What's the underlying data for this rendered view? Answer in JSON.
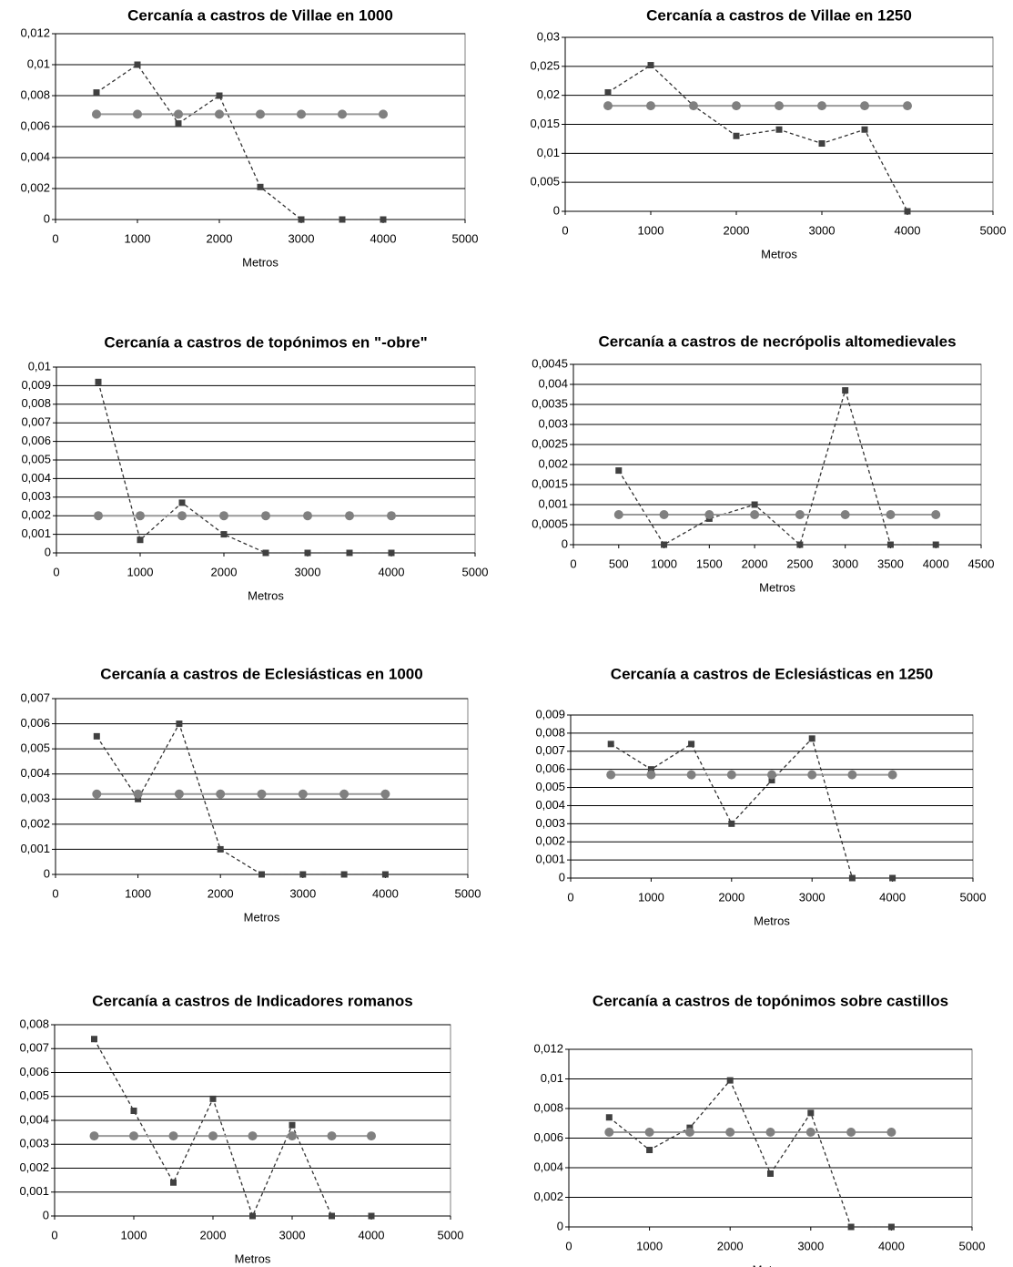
{
  "chart_data": [
    {
      "type": "line",
      "title": "Cercanía a castros de Villae en 1000",
      "xlabel": "Metros",
      "x": [
        500,
        1000,
        1500,
        2000,
        2500,
        3000,
        3500,
        4000
      ],
      "series": [
        {
          "color": "#404040",
          "marker": "square",
          "line_style": "dashed",
          "values": [
            0.0082,
            0.01,
            0.0062,
            0.008,
            0.0021,
            0,
            0,
            0
          ]
        },
        {
          "color": "#808080",
          "marker": "circle",
          "line_style": "solid",
          "values": [
            0.0068,
            0.0068,
            0.0068,
            0.0068,
            0.0068,
            0.0068,
            0.0068,
            0.0068
          ]
        }
      ],
      "xlim": [
        0,
        5000
      ],
      "xticks": [
        0,
        1000,
        2000,
        3000,
        4000,
        5000
      ],
      "ylim": [
        0,
        0.012
      ],
      "yticks": [
        0,
        {
          "value": 0.002,
          "label": "0,002"
        },
        {
          "value": 0.004,
          "label": "0,004"
        },
        {
          "value": 0.006,
          "label": "0,006"
        },
        {
          "value": 0.008,
          "label": "0,008"
        },
        {
          "value": 0.01,
          "label": "0,01"
        },
        {
          "value": 0.012,
          "label": "0,012"
        }
      ],
      "grid": true
    },
    {
      "type": "line",
      "title": "Cercanía a castros de Villae en 1250",
      "xlabel": "Metros",
      "x": [
        500,
        1000,
        1500,
        2000,
        2500,
        3000,
        3500,
        4000
      ],
      "series": [
        {
          "color": "#404040",
          "marker": "square",
          "line_style": "dashed",
          "values": [
            0.0205,
            0.0252,
            0.0182,
            0.013,
            0.0141,
            0.0117,
            0.0141,
            0
          ]
        },
        {
          "color": "#808080",
          "marker": "circle",
          "line_style": "solid",
          "values": [
            0.0182,
            0.0182,
            0.0182,
            0.0182,
            0.0182,
            0.0182,
            0.0182,
            0.0182
          ]
        }
      ],
      "xlim": [
        0,
        5000
      ],
      "xticks": [
        0,
        1000,
        2000,
        3000,
        4000,
        5000
      ],
      "ylim": [
        0,
        0.03
      ],
      "yticks": [
        0,
        {
          "value": 0.005,
          "label": "0,005"
        },
        {
          "value": 0.01,
          "label": "0,01"
        },
        {
          "value": 0.015,
          "label": "0,015"
        },
        {
          "value": 0.02,
          "label": "0,02"
        },
        {
          "value": 0.025,
          "label": "0,025"
        },
        {
          "value": 0.03,
          "label": "0,03"
        }
      ],
      "grid": true
    },
    {
      "type": "line",
      "title": "Cercanía a castros de topónimos en \"-obre\"",
      "xlabel": "Metros",
      "x": [
        500,
        1000,
        1500,
        2000,
        2500,
        3000,
        3500,
        4000
      ],
      "series": [
        {
          "color": "#404040",
          "marker": "square",
          "line_style": "dashed",
          "values": [
            0.0092,
            0.0007,
            0.0027,
            0.001,
            0,
            0,
            0,
            0
          ]
        },
        {
          "color": "#808080",
          "marker": "circle",
          "line_style": "solid",
          "values": [
            0.002,
            0.002,
            0.002,
            0.002,
            0.002,
            0.002,
            0.002,
            0.002
          ]
        }
      ],
      "xlim": [
        0,
        5000
      ],
      "xticks": [
        0,
        1000,
        2000,
        3000,
        4000,
        5000
      ],
      "ylim": [
        0,
        0.01
      ],
      "yticks": [
        0,
        {
          "value": 0.001,
          "label": "0,001"
        },
        {
          "value": 0.002,
          "label": "0,002"
        },
        {
          "value": 0.003,
          "label": "0,003"
        },
        {
          "value": 0.004,
          "label": "0,004"
        },
        {
          "value": 0.005,
          "label": "0,005"
        },
        {
          "value": 0.006,
          "label": "0,006"
        },
        {
          "value": 0.007,
          "label": "0,007"
        },
        {
          "value": 0.008,
          "label": "0,008"
        },
        {
          "value": 0.009,
          "label": "0,009"
        },
        {
          "value": 0.01,
          "label": "0,01"
        }
      ],
      "grid": true
    },
    {
      "type": "line",
      "title": "Cercanía a castros de necrópolis altomedievales",
      "xlabel": "Metros",
      "x": [
        500,
        1000,
        1500,
        2000,
        2500,
        3000,
        3500,
        4000
      ],
      "series": [
        {
          "color": "#404040",
          "marker": "square",
          "line_style": "dashed",
          "values": [
            0.00185,
            0,
            0.00065,
            0.001,
            0,
            0.00385,
            0,
            0
          ]
        },
        {
          "color": "#808080",
          "marker": "circle",
          "line_style": "solid",
          "values": [
            0.00075,
            0.00075,
            0.00075,
            0.00075,
            0.00075,
            0.00075,
            0.00075,
            0.00075
          ]
        }
      ],
      "xlim": [
        0,
        4500
      ],
      "xticks": [
        0,
        500,
        1000,
        1500,
        2000,
        2500,
        3000,
        3500,
        4000,
        4500
      ],
      "ylim": [
        0,
        0.0045
      ],
      "yticks": [
        0,
        {
          "value": 0.0005,
          "label": "0,0005"
        },
        {
          "value": 0.001,
          "label": "0,001"
        },
        {
          "value": 0.0015,
          "label": "0,0015"
        },
        {
          "value": 0.002,
          "label": "0,002"
        },
        {
          "value": 0.0025,
          "label": "0,0025"
        },
        {
          "value": 0.003,
          "label": "0,003"
        },
        {
          "value": 0.0035,
          "label": "0,0035"
        },
        {
          "value": 0.004,
          "label": "0,004"
        },
        {
          "value": 0.0045,
          "label": "0,0045"
        }
      ],
      "grid": true
    },
    {
      "type": "line",
      "title": "Cercanía a castros de Eclesiásticas en 1000",
      "xlabel": "Metros",
      "x": [
        500,
        1000,
        1500,
        2000,
        2500,
        3000,
        3500,
        4000
      ],
      "series": [
        {
          "color": "#404040",
          "marker": "square",
          "line_style": "dashed",
          "values": [
            0.0055,
            0.003,
            0.006,
            0.001,
            0,
            0,
            0,
            0
          ]
        },
        {
          "color": "#808080",
          "marker": "circle",
          "line_style": "solid",
          "values": [
            0.0032,
            0.0032,
            0.0032,
            0.0032,
            0.0032,
            0.0032,
            0.0032,
            0.0032
          ]
        }
      ],
      "xlim": [
        0,
        5000
      ],
      "xticks": [
        0,
        1000,
        2000,
        3000,
        4000,
        5000
      ],
      "ylim": [
        0,
        0.007
      ],
      "yticks": [
        0,
        {
          "value": 0.001,
          "label": "0,001"
        },
        {
          "value": 0.002,
          "label": "0,002"
        },
        {
          "value": 0.003,
          "label": "0,003"
        },
        {
          "value": 0.004,
          "label": "0,004"
        },
        {
          "value": 0.005,
          "label": "0,005"
        },
        {
          "value": 0.006,
          "label": "0,006"
        },
        {
          "value": 0.007,
          "label": "0,007"
        }
      ],
      "grid": true
    },
    {
      "type": "line",
      "title": "Cercanía a castros de Eclesiásticas en 1250",
      "xlabel": "Metros",
      "x": [
        500,
        1000,
        1500,
        2000,
        2500,
        3000,
        3500,
        4000
      ],
      "series": [
        {
          "color": "#404040",
          "marker": "square",
          "line_style": "dashed",
          "values": [
            0.0074,
            0.006,
            0.0074,
            0.003,
            0.0054,
            0.0077,
            0,
            0
          ]
        },
        {
          "color": "#808080",
          "marker": "circle",
          "line_style": "solid",
          "values": [
            0.0057,
            0.0057,
            0.0057,
            0.0057,
            0.0057,
            0.0057,
            0.0057,
            0.0057
          ]
        }
      ],
      "xlim": [
        0,
        5000
      ],
      "xticks": [
        0,
        1000,
        2000,
        3000,
        4000,
        5000
      ],
      "ylim": [
        0,
        0.009
      ],
      "yticks": [
        0,
        {
          "value": 0.001,
          "label": "0,001"
        },
        {
          "value": 0.002,
          "label": "0,002"
        },
        {
          "value": 0.003,
          "label": "0,003"
        },
        {
          "value": 0.004,
          "label": "0,004"
        },
        {
          "value": 0.005,
          "label": "0,005"
        },
        {
          "value": 0.006,
          "label": "0,006"
        },
        {
          "value": 0.007,
          "label": "0,007"
        },
        {
          "value": 0.008,
          "label": "0,008"
        },
        {
          "value": 0.009,
          "label": "0,009"
        }
      ],
      "grid": true
    },
    {
      "type": "line",
      "title": "Cercanía a castros de Indicadores romanos",
      "xlabel": "Metros",
      "x": [
        500,
        1000,
        1500,
        2000,
        2500,
        3000,
        3500,
        4000
      ],
      "series": [
        {
          "color": "#404040",
          "marker": "square",
          "line_style": "dashed",
          "values": [
            0.0074,
            0.0044,
            0.0014,
            0.0049,
            0,
            0.0038,
            0,
            0
          ]
        },
        {
          "color": "#808080",
          "marker": "circle",
          "line_style": "solid",
          "values": [
            0.00335,
            0.00335,
            0.00335,
            0.00335,
            0.00335,
            0.00335,
            0.00335,
            0.00335
          ]
        }
      ],
      "xlim": [
        0,
        5000
      ],
      "xticks": [
        0,
        1000,
        2000,
        3000,
        4000,
        5000
      ],
      "ylim": [
        0,
        0.008
      ],
      "yticks": [
        0,
        {
          "value": 0.001,
          "label": "0,001"
        },
        {
          "value": 0.002,
          "label": "0,002"
        },
        {
          "value": 0.003,
          "label": "0,003"
        },
        {
          "value": 0.004,
          "label": "0,004"
        },
        {
          "value": 0.005,
          "label": "0,005"
        },
        {
          "value": 0.006,
          "label": "0,006"
        },
        {
          "value": 0.007,
          "label": "0,007"
        },
        {
          "value": 0.008,
          "label": "0,008"
        }
      ],
      "grid": true
    },
    {
      "type": "line",
      "title": "Cercanía a castros de topónimos sobre castillos",
      "xlabel": "Metros",
      "x": [
        500,
        1000,
        1500,
        2000,
        2500,
        3000,
        3500,
        4000
      ],
      "series": [
        {
          "color": "#404040",
          "marker": "square",
          "line_style": "dashed",
          "values": [
            0.0074,
            0.0052,
            0.0067,
            0.0099,
            0.0036,
            0.0077,
            0,
            0
          ]
        },
        {
          "color": "#808080",
          "marker": "circle",
          "line_style": "solid",
          "values": [
            0.0064,
            0.0064,
            0.0064,
            0.0064,
            0.0064,
            0.0064,
            0.0064,
            0.0064
          ]
        }
      ],
      "xlim": [
        0,
        5000
      ],
      "xticks": [
        0,
        1000,
        2000,
        3000,
        4000,
        5000
      ],
      "ylim": [
        0,
        0.012
      ],
      "yticks": [
        0,
        {
          "value": 0.002,
          "label": "0,002"
        },
        {
          "value": 0.004,
          "label": "0,004"
        },
        {
          "value": 0.006,
          "label": "0,006"
        },
        {
          "value": 0.008,
          "label": "0,008"
        },
        {
          "value": 0.01,
          "label": "0,01"
        },
        {
          "value": 0.012,
          "label": "0,012"
        }
      ],
      "grid": true
    }
  ]
}
